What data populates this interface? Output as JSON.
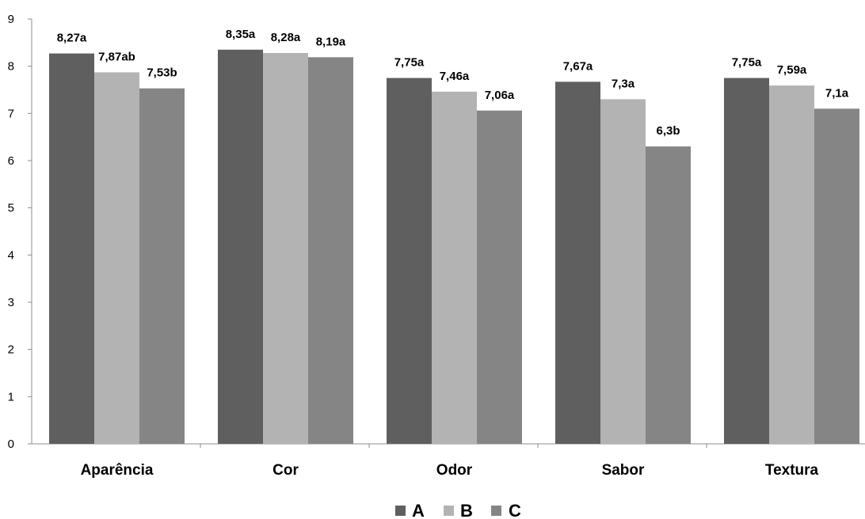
{
  "chart_data": {
    "type": "bar",
    "categories": [
      "Aparência",
      "Cor",
      "Odor",
      "Sabor",
      "Textura"
    ],
    "series": [
      {
        "name": "A",
        "color": "#5f5f5f",
        "values": [
          8.27,
          8.35,
          7.75,
          7.67,
          7.75
        ],
        "labels": [
          "8,27a",
          "8,35a",
          "7,75a",
          "7,67a",
          "7,75a"
        ]
      },
      {
        "name": "B",
        "color": "#b3b3b3",
        "values": [
          7.87,
          8.28,
          7.46,
          7.3,
          7.59
        ],
        "labels": [
          "7,87ab",
          "8,28a",
          "7,46a",
          "7,3a",
          "7,59a"
        ]
      },
      {
        "name": "C",
        "color": "#858585",
        "values": [
          7.53,
          8.19,
          7.06,
          6.3,
          7.1
        ],
        "labels": [
          "7,53b",
          "8,19a",
          "7,06a",
          "6,3b",
          "7,1a"
        ]
      }
    ],
    "title": "",
    "xlabel": "",
    "ylabel": "",
    "ylim": [
      0,
      9
    ],
    "yticks": [
      0,
      1,
      2,
      3,
      4,
      5,
      6,
      7,
      8,
      9
    ],
    "grid": false,
    "legend_position": "bottom-center"
  }
}
